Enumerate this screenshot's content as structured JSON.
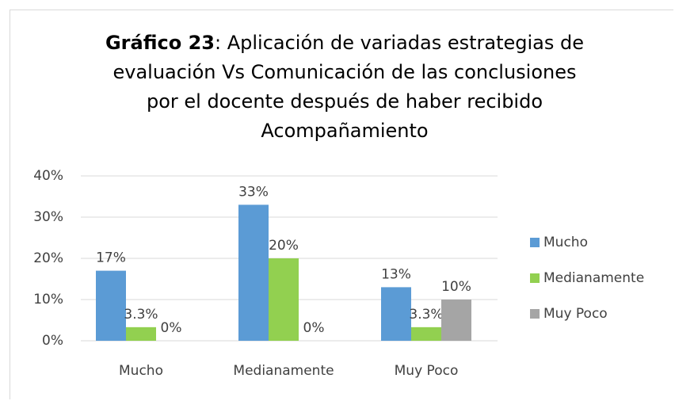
{
  "chart_data": {
    "type": "bar",
    "title_prefix": "Gráfico 23",
    "title": ": Aplicación de variadas estrategias de evaluación Vs Comunicación de las conclusiones por el docente después de haber recibido Acompañamiento",
    "categories": [
      "Mucho",
      "Medianamente",
      "Muy Poco"
    ],
    "series": [
      {
        "name": "Mucho",
        "color": "#5b9bd5",
        "values": [
          17,
          33,
          13
        ],
        "value_labels": [
          "17%",
          "33%",
          "13%"
        ]
      },
      {
        "name": "Medianamente",
        "color": "#92d050",
        "values": [
          3.3,
          20,
          3.3
        ],
        "value_labels": [
          "3.3%",
          "20%",
          "3.3%"
        ]
      },
      {
        "name": "Muy Poco",
        "color": "#a5a5a5",
        "values": [
          0,
          0,
          10
        ],
        "value_labels": [
          "0%",
          "0%",
          "10%"
        ]
      }
    ],
    "ylim": [
      0,
      40
    ],
    "yticks": [
      {
        "value": 0,
        "label": "0%"
      },
      {
        "value": 10,
        "label": "10%"
      },
      {
        "value": 20,
        "label": "20%"
      },
      {
        "value": 30,
        "label": "30%"
      },
      {
        "value": 40,
        "label": "40%"
      }
    ],
    "grid": true,
    "legend": "right"
  }
}
